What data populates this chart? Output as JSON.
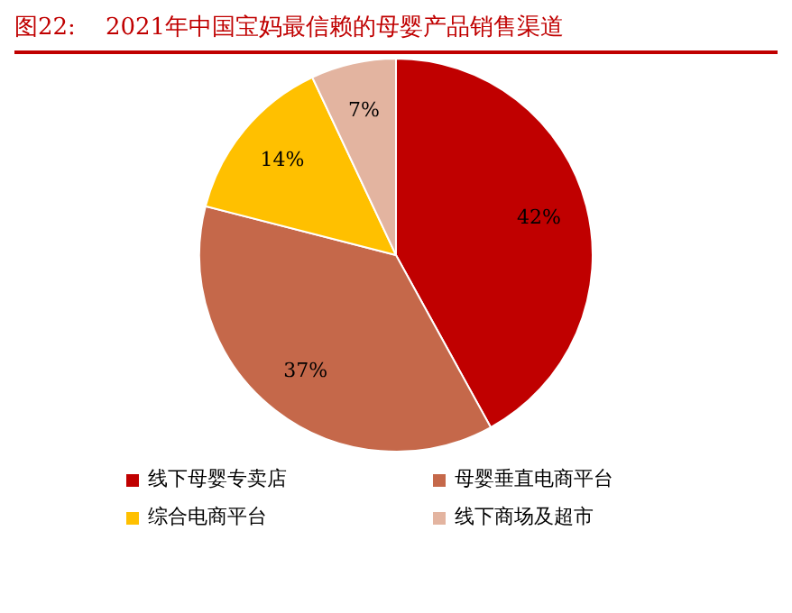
{
  "chart_data": {
    "type": "pie",
    "title": "图22:    2021年中国宝妈最信赖的母婴产品销售渠道",
    "categories": [
      "线下母婴专卖店",
      "母婴垂直电商平台",
      "综合电商平台",
      "线下商场及超市"
    ],
    "values": [
      42,
      37,
      14,
      7
    ],
    "colors": [
      "#c00000",
      "#c5684a",
      "#ffc000",
      "#e3b4a0"
    ],
    "value_labels": [
      "42%",
      "37%",
      "14%",
      "7%"
    ],
    "legend": "bottom"
  }
}
